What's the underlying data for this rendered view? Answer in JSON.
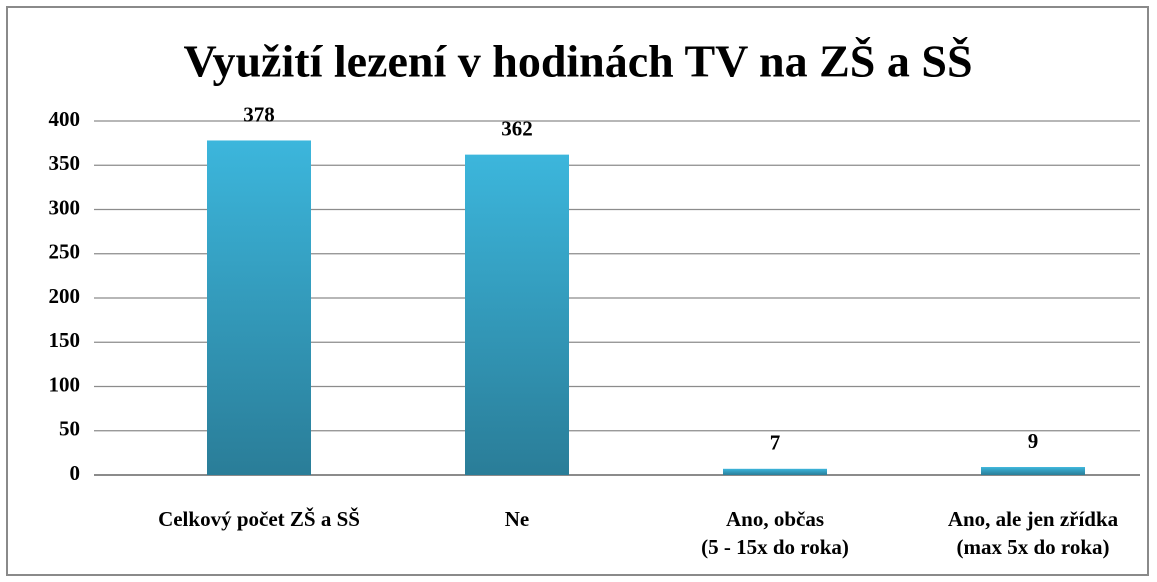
{
  "chart_data": {
    "type": "bar",
    "title": "Využití lezení v hodinách TV na ZŠ a SŠ",
    "categories": [
      "Celkový počet ZŠ a SŠ",
      "Ne",
      "Ano, občas\n(5 - 15x do roka)",
      "Ano, ale jen zřídka\n(max 5x do roka)"
    ],
    "values": [
      378,
      362,
      7,
      9
    ],
    "color": "#31a3c7",
    "ylim": [
      0,
      400
    ],
    "yticks": [
      0,
      50,
      100,
      150,
      200,
      250,
      300,
      350,
      400
    ],
    "grid": true
  }
}
